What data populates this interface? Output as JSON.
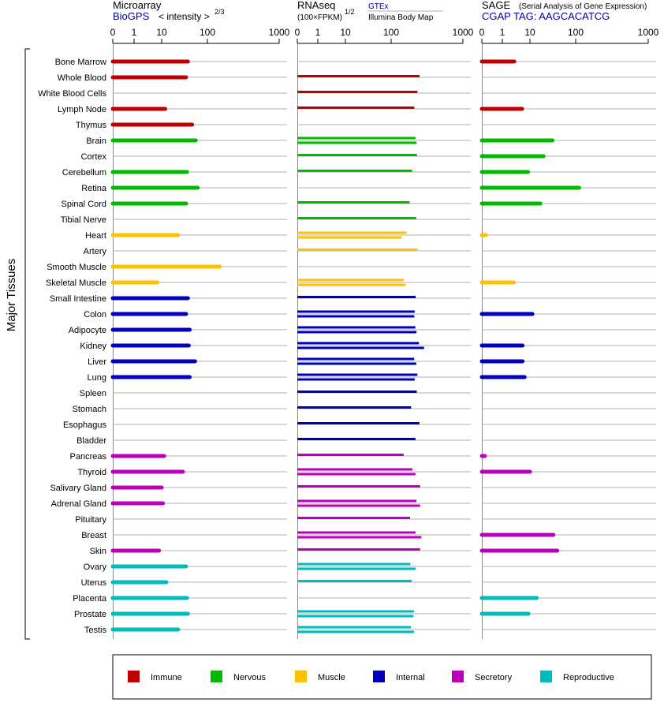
{
  "chart_data": {
    "type": "bar",
    "y_group_label": "Major Tissues",
    "panels": [
      {
        "title": "Microarray",
        "subtitle_link": "BioGPS",
        "unit_label": "< intensity >",
        "unit_exponent": "2/3",
        "ticks": [
          "0",
          "1",
          "10",
          "100",
          "1000"
        ]
      },
      {
        "title": "RNAseq",
        "unit_label": "(100×FPKM)",
        "unit_exponent": "1/2",
        "source1": "GTEx",
        "source2": "Illumina Body Map",
        "ticks": [
          "0",
          "1",
          "10",
          "100",
          "1000"
        ]
      },
      {
        "title": "SAGE",
        "title_note": "(Serial Analysis of Gene Expression)",
        "subtitle_link": "CGAP TAG: AAGCACATCG",
        "ticks": [
          "0",
          "1",
          "10",
          "100",
          "1000"
        ]
      }
    ],
    "tissues": [
      {
        "name": "Bone Marrow",
        "cat": "immune",
        "micro": 28,
        "rna": [],
        "sage": 2.7
      },
      {
        "name": "Whole Blood",
        "cat": "immune",
        "micro": 26,
        "rna": [
          183
        ],
        "sage": null
      },
      {
        "name": "White Blood Cells",
        "cat": "immune",
        "micro": null,
        "rna": [
          168
        ],
        "sage": null
      },
      {
        "name": "Lymph Node",
        "cat": "immune",
        "micro": 11.5,
        "rna": [
          149
        ],
        "sage": 5.2
      },
      {
        "name": "Thymus",
        "cat": "immune",
        "micro": 33,
        "rna": [],
        "sage": null
      },
      {
        "name": "Brain",
        "cat": "nervous",
        "micro": 38,
        "rna": [
          156,
          163
        ],
        "sage": 24
      },
      {
        "name": "Cortex",
        "cat": "nervous",
        "micro": null,
        "rna": [
          165
        ],
        "sage": 17
      },
      {
        "name": "Cerebellum",
        "cat": "nervous",
        "micro": 27,
        "rna": [
          137
        ],
        "sage": 8.5
      },
      {
        "name": "Retina",
        "cat": "nervous",
        "micro": 41,
        "rna": [],
        "sage": 68
      },
      {
        "name": "Spinal Cord",
        "cat": "nervous",
        "micro": 26,
        "rna": [
          124
        ],
        "sage": 15
      },
      {
        "name": "Tibial Nerve",
        "cat": "nervous",
        "micro": null,
        "rna": [
          160
        ],
        "sage": null
      },
      {
        "name": "Heart",
        "cat": "muscle",
        "micro": 19,
        "rna": [
          110,
          91
        ],
        "sage": 0.2
      },
      {
        "name": "Artery",
        "cat": "muscle",
        "micro": null,
        "rna": [
          169
        ],
        "sage": null
      },
      {
        "name": "Smooth Muscle",
        "cat": "muscle",
        "micro": 97,
        "rna": [],
        "sage": null
      },
      {
        "name": "Skeletal Muscle",
        "cat": "muscle",
        "micro": 7,
        "rna": [
          98,
          106
        ],
        "sage": 2.6
      },
      {
        "name": "Small Intestine",
        "cat": "internal",
        "micro": 28,
        "rna": [
          157
        ],
        "sage": null
      },
      {
        "name": "Colon",
        "cat": "internal",
        "micro": 26,
        "rna": [
          151,
          149
        ],
        "sage": 11
      },
      {
        "name": "Adipocyte",
        "cat": "internal",
        "micro": 30,
        "rna": [
          155,
          162
        ],
        "sage": null
      },
      {
        "name": "Kidney",
        "cat": "internal",
        "micro": 29,
        "rna": [
          178,
          218
        ],
        "sage": 5.4
      },
      {
        "name": "Liver",
        "cat": "internal",
        "micro": 37,
        "rna": [
          148,
          161
        ],
        "sage": 5.4
      },
      {
        "name": "Lung",
        "cat": "internal",
        "micro": 30,
        "rna": [
          168,
          151
        ],
        "sage": 6.4
      },
      {
        "name": "Spleen",
        "cat": "internal",
        "micro": null,
        "rna": [
          164
        ],
        "sage": null
      },
      {
        "name": "Stomach",
        "cat": "internal",
        "micro": null,
        "rna": [
          131
        ],
        "sage": null
      },
      {
        "name": "Esophagus",
        "cat": "internal",
        "micro": null,
        "rna": [
          182
        ],
        "sage": null
      },
      {
        "name": "Bladder",
        "cat": "internal",
        "micro": null,
        "rna": [
          156
        ],
        "sage": null
      },
      {
        "name": "Pancreas",
        "cat": "secretory",
        "micro": 11,
        "rna": [
          98
        ],
        "sage": 0.15
      },
      {
        "name": "Thyroid",
        "cat": "secretory",
        "micro": 23,
        "rna": [
          138,
          156
        ],
        "sage": 10
      },
      {
        "name": "Salivary Gland",
        "cat": "secretory",
        "micro": 10,
        "rna": [
          187
        ],
        "sage": null
      },
      {
        "name": "Adrenal Gland",
        "cat": "secretory",
        "micro": 10.5,
        "rna": [
          162,
          187
        ],
        "sage": null
      },
      {
        "name": "Pituitary",
        "cat": "secretory",
        "micro": null,
        "rna": [
          126
        ],
        "sage": null
      },
      {
        "name": "Breast",
        "cat": "secretory",
        "micro": null,
        "rna": [
          156,
          196
        ],
        "sage": 25
      },
      {
        "name": "Skin",
        "cat": "secretory",
        "micro": 8,
        "rna": [
          187
        ],
        "sage": 29
      },
      {
        "name": "Ovary",
        "cat": "reproductive",
        "micro": 26,
        "rna": [
          128,
          156
        ],
        "sage": null
      },
      {
        "name": "Uterus",
        "cat": "reproductive",
        "micro": 12,
        "rna": [
          135
        ],
        "sage": null
      },
      {
        "name": "Placenta",
        "cat": "reproductive",
        "micro": 27,
        "rna": [],
        "sage": 13
      },
      {
        "name": "Prostate",
        "cat": "reproductive",
        "micro": 28,
        "rna": [
          147,
          144
        ],
        "sage": 8.8
      },
      {
        "name": "Testis",
        "cat": "reproductive",
        "micro": 19,
        "rna": [
          130,
          147
        ],
        "sage": null
      }
    ],
    "legend": [
      {
        "key": "immune",
        "label": "Immune",
        "color": "#c00000"
      },
      {
        "key": "nervous",
        "label": "Nervous",
        "color": "#00bb00"
      },
      {
        "key": "muscle",
        "label": "Muscle",
        "color": "#ffc000"
      },
      {
        "key": "internal",
        "label": "Internal",
        "color": "#0000bb"
      },
      {
        "key": "secretory",
        "label": "Secretory",
        "color": "#bb00bb"
      },
      {
        "key": "reproductive",
        "label": "Reproductive",
        "color": "#00bbbb"
      }
    ]
  }
}
